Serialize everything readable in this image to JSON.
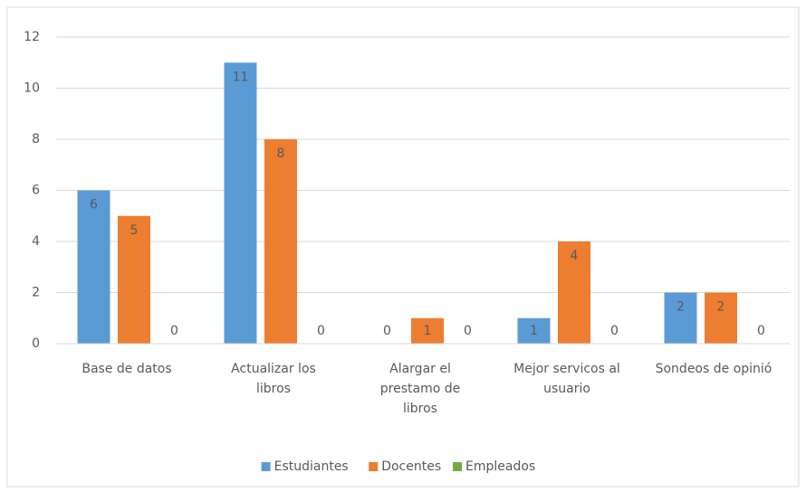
{
  "chart_data": {
    "type": "bar",
    "categories": [
      "Base de datos",
      "Actualizar los libros",
      "Alargar el prestamo de libros",
      "Mejor servicos al usuario",
      "Sondeos de opinió"
    ],
    "series": [
      {
        "name": "Estudiantes",
        "color": "#5b9bd5",
        "values": [
          6,
          11,
          0,
          1,
          2
        ]
      },
      {
        "name": "Docentes",
        "color": "#ed7d31",
        "values": [
          5,
          8,
          1,
          4,
          2
        ]
      },
      {
        "name": "Empleados",
        "color": "#70ad47",
        "values": [
          0,
          0,
          0,
          0,
          0
        ]
      }
    ],
    "ylim": [
      0,
      12
    ],
    "yticks": [
      0,
      2,
      4,
      6,
      8,
      10,
      12
    ],
    "grid": true,
    "legend": "bottom"
  }
}
